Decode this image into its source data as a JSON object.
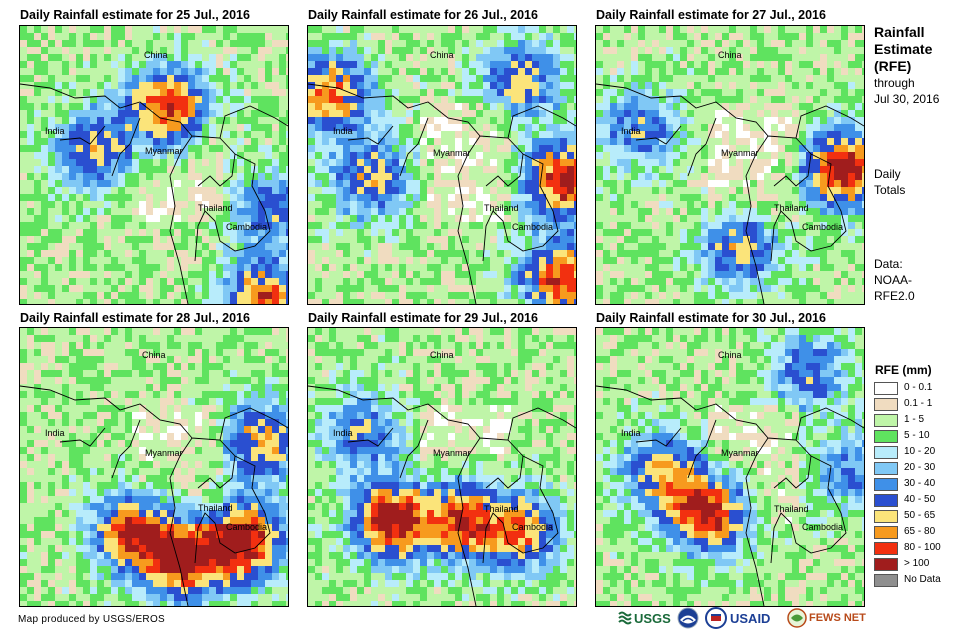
{
  "panels": [
    {
      "title": "Daily Rainfall estimate for 25 Jul., 2016"
    },
    {
      "title": "Daily Rainfall estimate for 26 Jul., 2016"
    },
    {
      "title": "Daily Rainfall estimate for 27 Jul., 2016"
    },
    {
      "title": "Daily Rainfall estimate for 28 Jul., 2016"
    },
    {
      "title": "Daily Rainfall estimate for 29 Jul., 2016"
    },
    {
      "title": "Daily Rainfall estimate for 30 Jul., 2016"
    }
  ],
  "places": {
    "china": "China",
    "india": "India",
    "myanmar": "Myanmar",
    "thailand": "Thailand",
    "cambodia": "Cambodia"
  },
  "side": {
    "title_line1": "Rainfall",
    "title_line2": "Estimate",
    "title_line3": "(RFE)",
    "through": "through",
    "date": "Jul 30, 2016",
    "daily": "Daily",
    "totals": "Totals",
    "data_label": "Data:",
    "source1": "NOAA-",
    "source2": "RFE2.0"
  },
  "legend": {
    "title": "RFE (mm)",
    "items": [
      {
        "label": "0 - 0.1",
        "color": "#ffffff"
      },
      {
        "label": "0.1 - 1",
        "color": "#f0dcc0"
      },
      {
        "label": "1 - 5",
        "color": "#bff5a8"
      },
      {
        "label": "5 - 10",
        "color": "#5fe35f"
      },
      {
        "label": "10 - 20",
        "color": "#b8ecfb"
      },
      {
        "label": "20 - 30",
        "color": "#80c8f5"
      },
      {
        "label": "30 - 40",
        "color": "#3f90e8"
      },
      {
        "label": "40 - 50",
        "color": "#2a4fd0"
      },
      {
        "label": "50 - 65",
        "color": "#fbe47a"
      },
      {
        "label": "65 - 80",
        "color": "#f79a1e"
      },
      {
        "label": "80 - 100",
        "color": "#f23010"
      },
      {
        "label": "> 100",
        "color": "#a01d1d"
      },
      {
        "label": "No Data",
        "color": "#8f8f8f"
      }
    ]
  },
  "credit": "Map produced by USGS/EROS",
  "logos": {
    "usgs": "USGS",
    "usaid": "USAID",
    "fews": "FEWS NET"
  }
}
